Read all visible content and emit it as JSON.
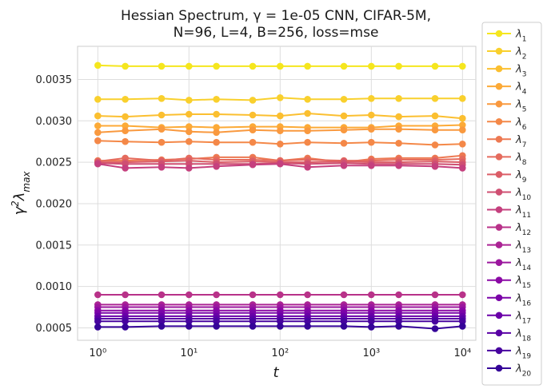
{
  "chart_data": {
    "type": "line",
    "title_line1": "Hessian Spectrum, γ = 1e-05 CNN, CIFAR-5M,",
    "title_line2": "N=96, L=4, B=256, loss=mse",
    "xlabel": "t",
    "ylabel": "γ²λmax",
    "xscale": "log",
    "xlim": [
      0.6,
      14000
    ],
    "ylim": [
      0.00035,
      0.0039
    ],
    "x_ticks": [
      {
        "value": 1,
        "label": "10⁰"
      },
      {
        "value": 10,
        "label": "10¹"
      },
      {
        "value": 100,
        "label": "10²"
      },
      {
        "value": 1000,
        "label": "10³"
      },
      {
        "value": 10000,
        "label": "10⁴"
      }
    ],
    "y_ticks": [
      {
        "value": 0.0005,
        "label": "0.0005"
      },
      {
        "value": 0.001,
        "label": "0.0010"
      },
      {
        "value": 0.0015,
        "label": "0.0015"
      },
      {
        "value": 0.002,
        "label": "0.0020"
      },
      {
        "value": 0.0025,
        "label": "0.0025"
      },
      {
        "value": 0.003,
        "label": "0.0030"
      },
      {
        "value": 0.0035,
        "label": "0.0035"
      }
    ],
    "grid": true,
    "legend_position": "outside-right",
    "x": [
      1,
      2,
      5,
      10,
      20,
      50,
      100,
      200,
      500,
      1000,
      2000,
      5000,
      10000
    ],
    "series": [
      {
        "name": "λ1",
        "sub": "1",
        "color": "#f5e61e",
        "values": [
          0.00367,
          0.00366,
          0.00366,
          0.00366,
          0.00366,
          0.00366,
          0.00366,
          0.00366,
          0.00366,
          0.00366,
          0.00366,
          0.00366,
          0.00366
        ]
      },
      {
        "name": "λ2",
        "sub": "2",
        "color": "#f9d02d",
        "values": [
          0.00326,
          0.00326,
          0.00327,
          0.00325,
          0.00326,
          0.00325,
          0.00328,
          0.00326,
          0.00326,
          0.00327,
          0.00327,
          0.00327,
          0.00327
        ]
      },
      {
        "name": "λ3",
        "sub": "3",
        "color": "#fbbf30",
        "values": [
          0.00306,
          0.00305,
          0.00307,
          0.00308,
          0.00308,
          0.00307,
          0.00306,
          0.00309,
          0.00306,
          0.00307,
          0.00305,
          0.00306,
          0.00303
        ]
      },
      {
        "name": "λ4",
        "sub": "4",
        "color": "#fcaa37",
        "values": [
          0.00294,
          0.00294,
          0.00292,
          0.00293,
          0.00292,
          0.00293,
          0.00293,
          0.00292,
          0.00292,
          0.00292,
          0.00294,
          0.00294,
          0.00295
        ]
      },
      {
        "name": "λ5",
        "sub": "5",
        "color": "#f9993f",
        "values": [
          0.00286,
          0.00288,
          0.0029,
          0.00287,
          0.00286,
          0.00289,
          0.00288,
          0.00288,
          0.00289,
          0.0029,
          0.0029,
          0.00289,
          0.00289
        ]
      },
      {
        "name": "λ6",
        "sub": "6",
        "color": "#f48848",
        "values": [
          0.00276,
          0.00275,
          0.00274,
          0.00275,
          0.00274,
          0.00274,
          0.00272,
          0.00274,
          0.00273,
          0.00274,
          0.00273,
          0.00271,
          0.00272
        ]
      },
      {
        "name": "λ7",
        "sub": "7",
        "color": "#ed7952",
        "values": [
          0.00252,
          0.00252,
          0.00253,
          0.00254,
          0.00256,
          0.00256,
          0.00252,
          0.00255,
          0.0025,
          0.00254,
          0.00255,
          0.00255,
          0.00258
        ]
      },
      {
        "name": "λ8",
        "sub": "8",
        "color": "#e56b5d",
        "values": [
          0.00251,
          0.00255,
          0.00252,
          0.00255,
          0.00253,
          0.00253,
          0.00252,
          0.00253,
          0.00252,
          0.00252,
          0.00253,
          0.00253,
          0.00254
        ]
      },
      {
        "name": "λ9",
        "sub": "9",
        "color": "#db5d67",
        "values": [
          0.0025,
          0.0025,
          0.00251,
          0.00252,
          0.0025,
          0.00251,
          0.0025,
          0.0025,
          0.00251,
          0.0025,
          0.0025,
          0.00251,
          0.0025
        ]
      },
      {
        "name": "λ10",
        "sub": "10",
        "color": "#cf4f72",
        "values": [
          0.00249,
          0.00248,
          0.00248,
          0.00248,
          0.00248,
          0.00248,
          0.00249,
          0.00248,
          0.00249,
          0.00248,
          0.00248,
          0.00248,
          0.00247
        ]
      },
      {
        "name": "λ11",
        "sub": "11",
        "color": "#c5407e",
        "values": [
          0.00248,
          0.00243,
          0.00244,
          0.00243,
          0.00245,
          0.00247,
          0.00248,
          0.00244,
          0.00246,
          0.00246,
          0.00246,
          0.00245,
          0.00243
        ]
      },
      {
        "name": "λ12",
        "sub": "12",
        "color": "#b83289",
        "values": [
          0.0009,
          0.0009,
          0.0009,
          0.0009,
          0.0009,
          0.0009,
          0.0009,
          0.0009,
          0.0009,
          0.0009,
          0.0009,
          0.0009,
          0.0009
        ]
      },
      {
        "name": "λ13",
        "sub": "13",
        "color": "#ab2494",
        "values": [
          0.00078,
          0.00078,
          0.00078,
          0.00078,
          0.00078,
          0.00078,
          0.00078,
          0.00078,
          0.00078,
          0.00078,
          0.00078,
          0.00078,
          0.00078
        ]
      },
      {
        "name": "λ14",
        "sub": "14",
        "color": "#9b179e",
        "values": [
          0.00075,
          0.00075,
          0.00075,
          0.00075,
          0.00075,
          0.00075,
          0.00075,
          0.00075,
          0.00075,
          0.00075,
          0.00075,
          0.00075,
          0.00075
        ]
      },
      {
        "name": "λ15",
        "sub": "15",
        "color": "#8b0aa5",
        "values": [
          0.00071,
          0.00071,
          0.00071,
          0.00071,
          0.00071,
          0.00071,
          0.00071,
          0.00071,
          0.00071,
          0.00071,
          0.00071,
          0.00071,
          0.00071
        ]
      },
      {
        "name": "λ16",
        "sub": "16",
        "color": "#7b04a8",
        "values": [
          0.00068,
          0.00068,
          0.00068,
          0.00068,
          0.00068,
          0.00068,
          0.00068,
          0.00068,
          0.00068,
          0.00068,
          0.00068,
          0.00068,
          0.00068
        ]
      },
      {
        "name": "λ17",
        "sub": "17",
        "color": "#6a00a8",
        "values": [
          0.00064,
          0.00064,
          0.00064,
          0.00064,
          0.00064,
          0.00064,
          0.00064,
          0.00064,
          0.00064,
          0.00064,
          0.00064,
          0.00064,
          0.00064
        ]
      },
      {
        "name": "λ18",
        "sub": "18",
        "color": "#5901a5",
        "values": [
          0.00061,
          0.00061,
          0.00061,
          0.00061,
          0.00061,
          0.00061,
          0.00061,
          0.00061,
          0.00061,
          0.00061,
          0.00061,
          0.00061,
          0.00061
        ]
      },
      {
        "name": "λ19",
        "sub": "19",
        "color": "#47039f",
        "values": [
          0.00058,
          0.00058,
          0.00058,
          0.00058,
          0.00058,
          0.00058,
          0.00058,
          0.00058,
          0.00058,
          0.00058,
          0.00058,
          0.00058,
          0.00058
        ]
      },
      {
        "name": "λ20",
        "sub": "20",
        "color": "#350498",
        "values": [
          0.00051,
          0.00051,
          0.00052,
          0.00052,
          0.00052,
          0.00052,
          0.00052,
          0.00052,
          0.00052,
          0.00051,
          0.00052,
          0.00049,
          0.00052
        ]
      }
    ]
  }
}
